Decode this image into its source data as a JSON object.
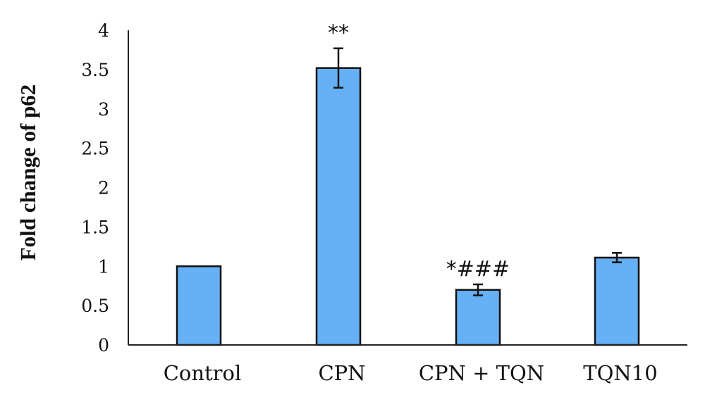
{
  "chart_data": {
    "type": "bar",
    "title": "",
    "xlabel": "",
    "ylabel": "Fold change of p62",
    "ylim": [
      0,
      4
    ],
    "yticks": [
      "0",
      "0.5",
      "1",
      "1.5",
      "2",
      "2.5",
      "3",
      "3.5",
      "4"
    ],
    "categories": [
      "Control",
      "CPN",
      "CPN + TQN",
      "TQN10"
    ],
    "values": [
      1.0,
      3.52,
      0.7,
      1.11
    ],
    "errors": [
      0.0,
      0.25,
      0.07,
      0.06
    ],
    "annotations": [
      "",
      "**",
      "*###",
      ""
    ],
    "bar_color": "#66b0f5",
    "bar_edge_color": "#111111",
    "grid": false,
    "legend": "none"
  }
}
